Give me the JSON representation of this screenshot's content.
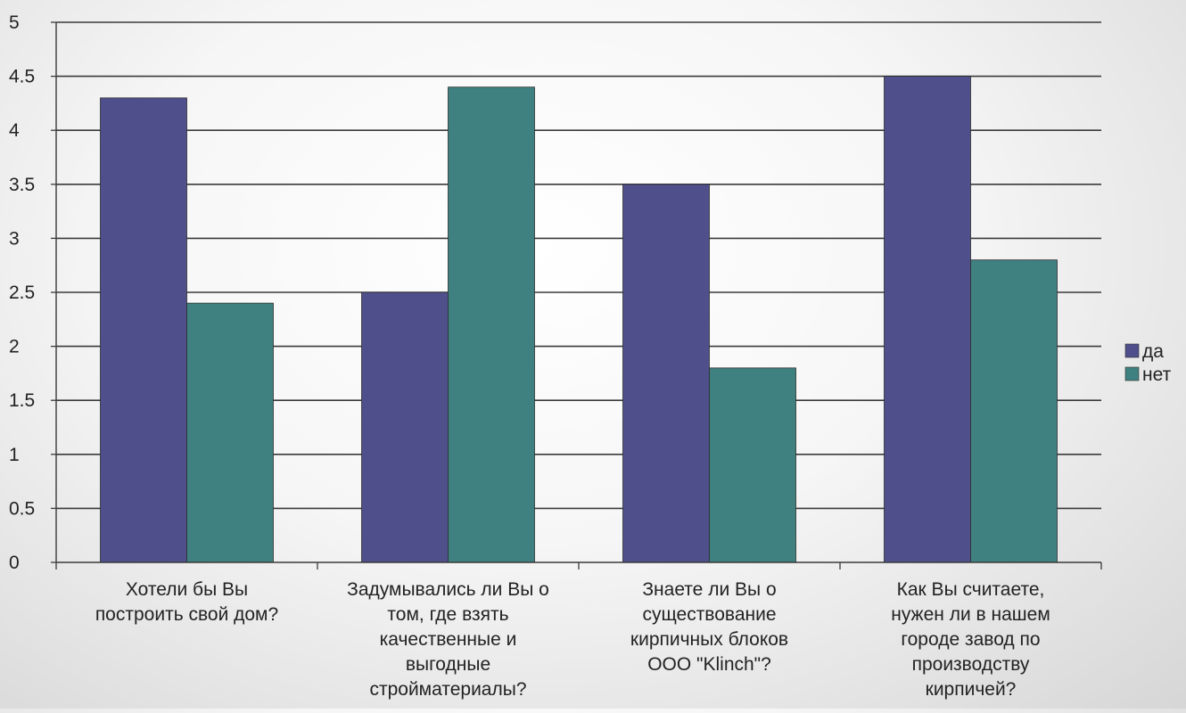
{
  "chart_data": {
    "type": "bar",
    "categories": [
      [
        "Хотели бы Вы",
        "построить свой дом?"
      ],
      [
        "Задумывались ли Вы о",
        "том, где взять",
        "качественные и",
        "выгодные",
        "стройматериалы?"
      ],
      [
        "Знаете ли Вы о",
        "существование",
        "кирпичных блоков",
        "ООО \"Klinch\"?"
      ],
      [
        "Как Вы считаете,",
        "нужен ли в нашем",
        "городе завод по",
        "производству",
        "кирпичей?"
      ]
    ],
    "series": [
      {
        "name": "да",
        "values": [
          4.3,
          2.5,
          3.5,
          4.5
        ],
        "color": "#4f4f8b"
      },
      {
        "name": "нет",
        "values": [
          2.4,
          4.4,
          1.8,
          2.8
        ],
        "color": "#3f8080"
      }
    ],
    "ylim": [
      0,
      5
    ],
    "yticks": [
      "0",
      "0.5",
      "1",
      "1.5",
      "2",
      "2.5",
      "3",
      "3.5",
      "4",
      "4.5",
      "5"
    ],
    "grid": true,
    "legend_position": "right"
  }
}
